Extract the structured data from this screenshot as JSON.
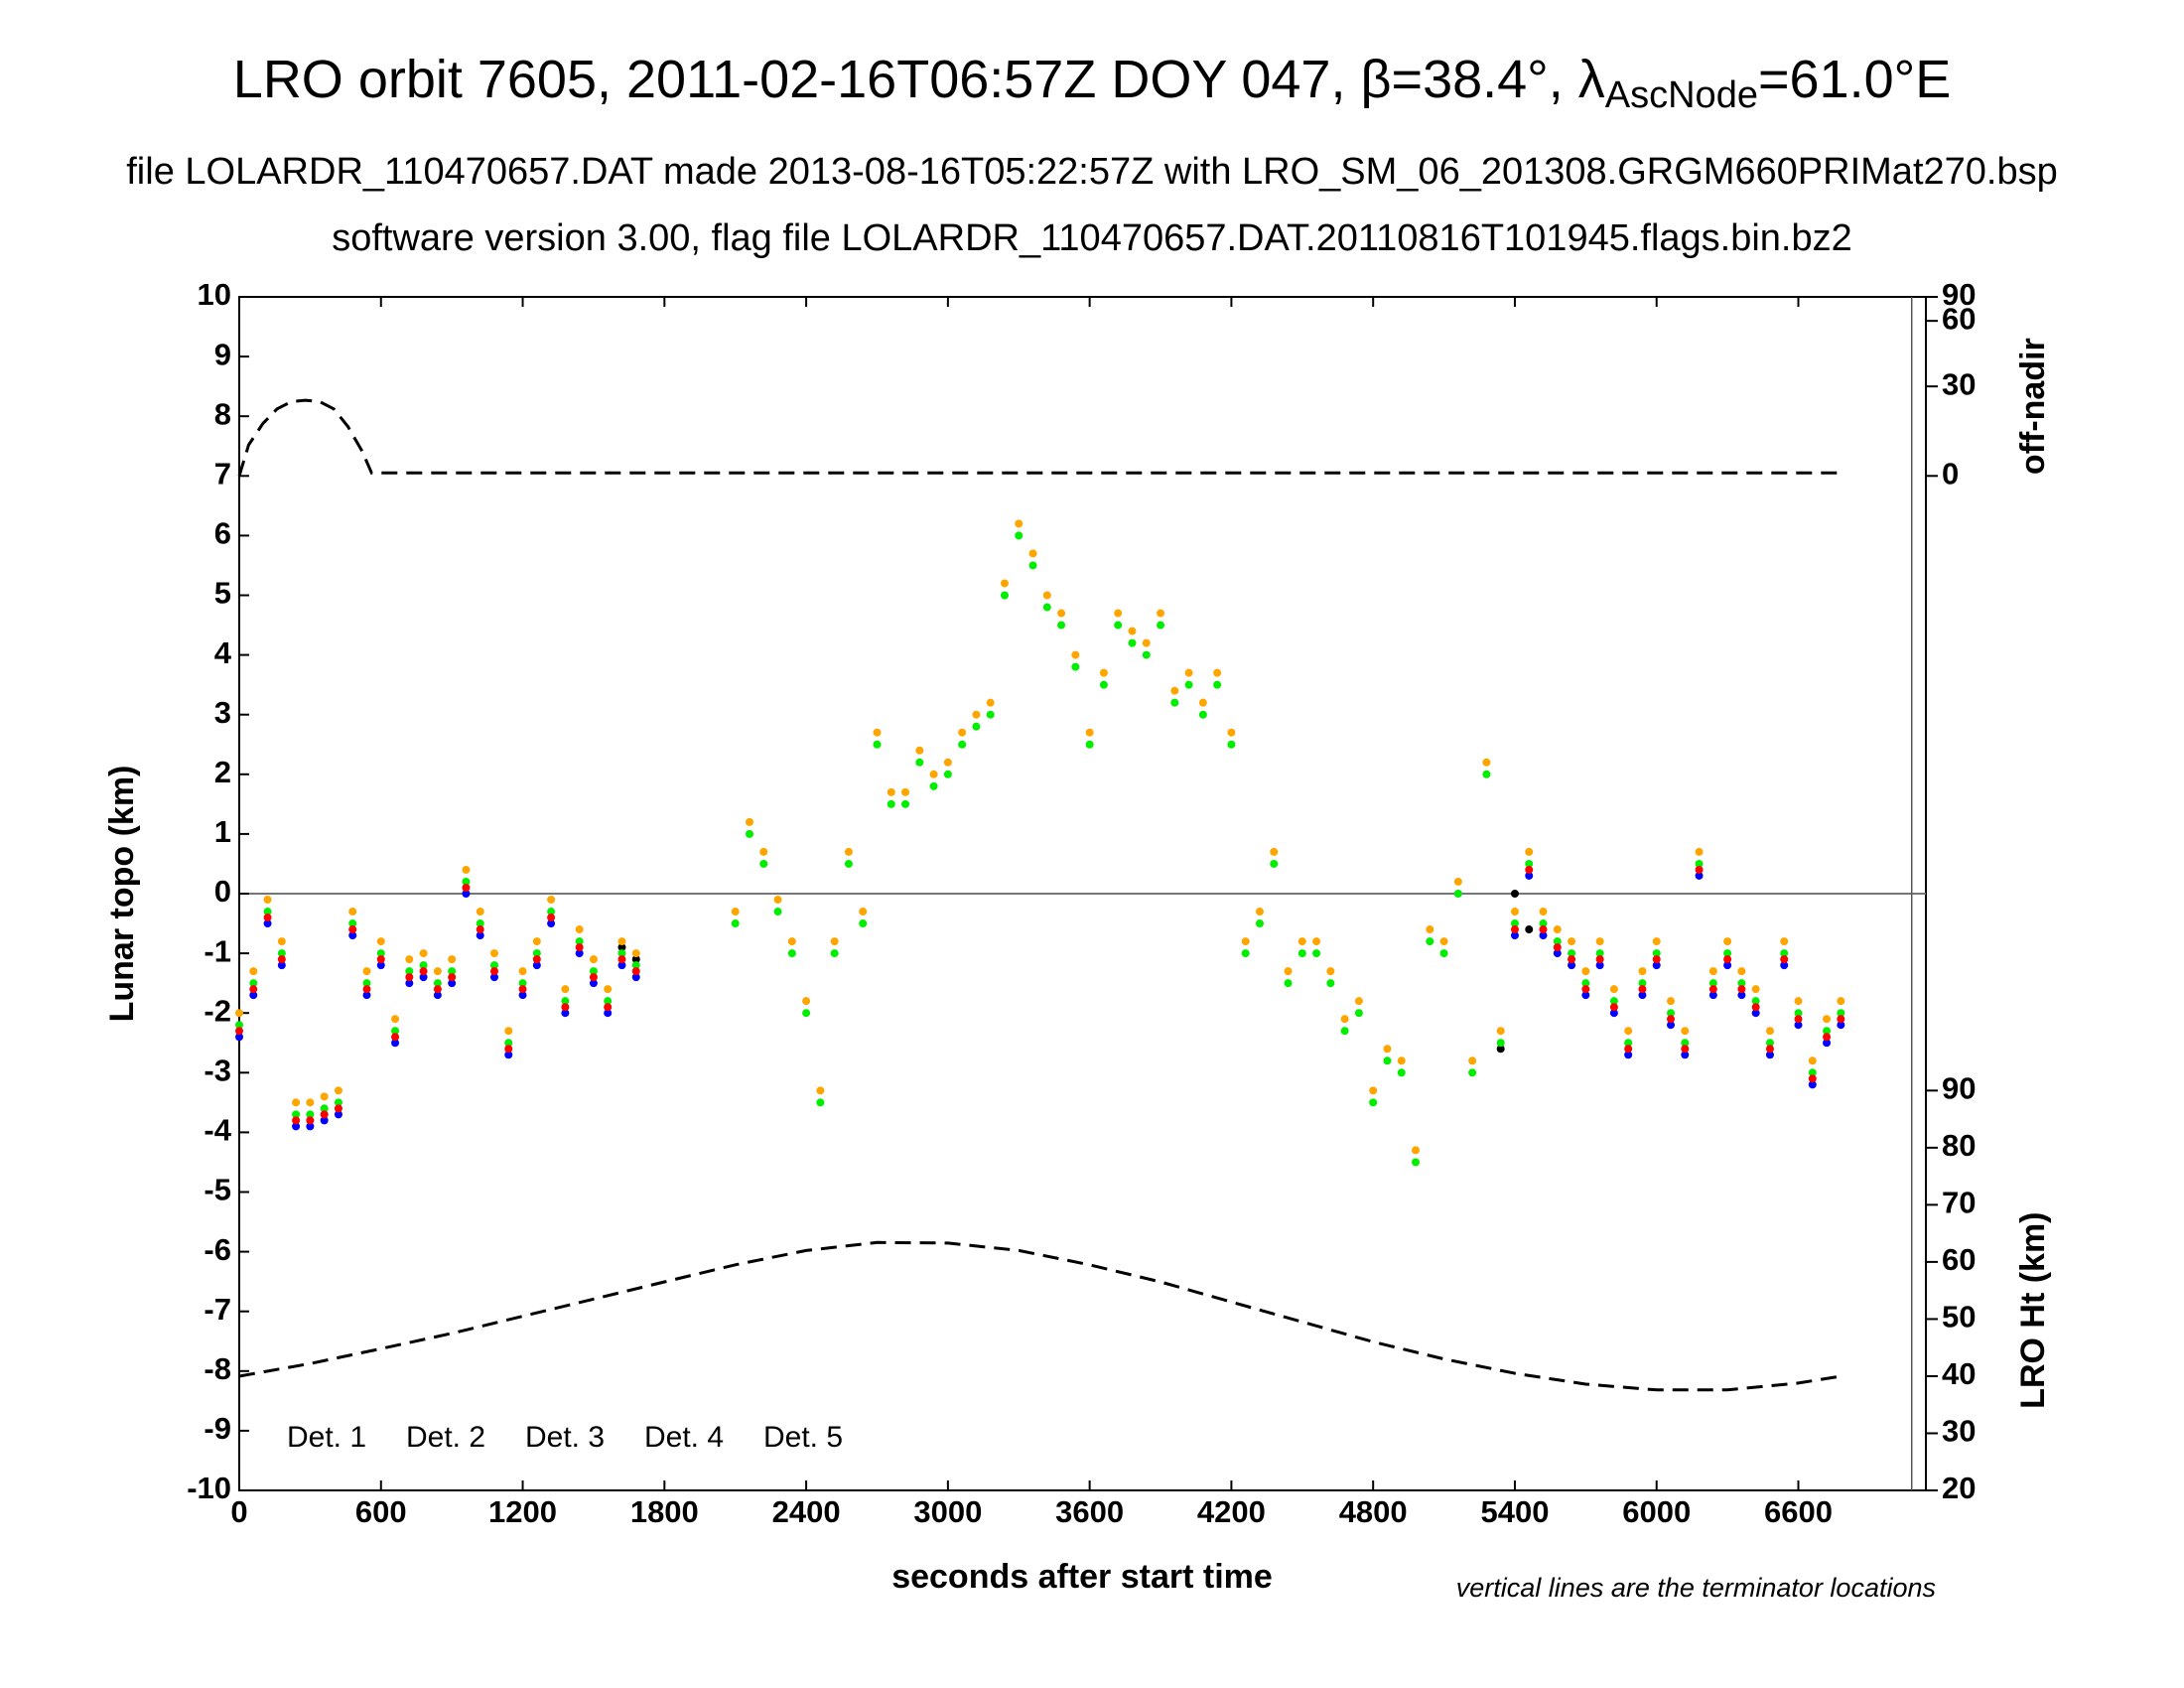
{
  "chart_data": {
    "type": "scatter",
    "title": "LRO orbit 7605, 2011-02-16T06:57Z DOY 047, β=38.4°, λ",
    "title_subscript": "AscNode",
    "title_end": "=61.0°E",
    "subtitle": "file LOLARDR_110470657.DAT made 2013-08-16T05:22:57Z with LRO_SM_06_201308.GRGM660PRIMat270.bsp",
    "subtitle2": "software version 3.00, flag file LOLARDR_110470657.DAT.20110816T101945.flags.bin.bz2",
    "xlabel": "seconds after start time",
    "ylabel": "Lunar topo (km)",
    "note": "vertical lines are the terminator locations",
    "xlim": [
      0,
      7140
    ],
    "xticks": [
      0,
      600,
      1200,
      1800,
      2400,
      3000,
      3600,
      4200,
      4800,
      5400,
      6000,
      6600
    ],
    "ylim": [
      -10,
      10
    ],
    "yticks": [
      -10,
      -9,
      -8,
      -7,
      -6,
      -5,
      -4,
      -3,
      -2,
      -1,
      0,
      1,
      2,
      3,
      4,
      5,
      6,
      7,
      8,
      9,
      10
    ],
    "zero_line": true,
    "terminators": [
      7080
    ],
    "legend": "lower left",
    "series": [
      {
        "name": "Det. 1",
        "color": "#000000",
        "x": [
          1620,
          1680,
          5340,
          5400,
          5460
        ],
        "values": [
          -0.9,
          -1.1,
          -2.6,
          0.0,
          -0.6
        ]
      },
      {
        "name": "Det. 2",
        "color": "#0000ff",
        "x": [
          0,
          60,
          120,
          180,
          240,
          300,
          360,
          420,
          480,
          540,
          600,
          660,
          720,
          780,
          840,
          900,
          960,
          1020,
          1080,
          1140,
          1200,
          1260,
          1320,
          1380,
          1440,
          1500,
          1560,
          1620,
          1680,
          5400,
          5460,
          5520,
          5580,
          5640,
          5700,
          5760,
          5820,
          5880,
          5940,
          6000,
          6060,
          6120,
          6180,
          6240,
          6300,
          6360,
          6420,
          6480,
          6540,
          6600,
          6660,
          6720,
          6780
        ],
        "values": [
          -2.4,
          -1.7,
          -0.5,
          -1.2,
          -3.9,
          -3.9,
          -3.8,
          -3.7,
          -0.7,
          -1.7,
          -1.2,
          -2.5,
          -1.5,
          -1.4,
          -1.7,
          -1.5,
          0.0,
          -0.7,
          -1.4,
          -2.7,
          -1.7,
          -1.2,
          -0.5,
          -2.0,
          -1.0,
          -1.5,
          -2.0,
          -1.2,
          -1.4,
          -0.7,
          0.3,
          -0.7,
          -1.0,
          -1.2,
          -1.7,
          -1.2,
          -2.0,
          -2.7,
          -1.7,
          -1.2,
          -2.2,
          -2.7,
          0.3,
          -1.7,
          -1.2,
          -1.7,
          -2.0,
          -2.7,
          -1.2,
          -2.2,
          -3.2,
          -2.5,
          -2.2
        ]
      },
      {
        "name": "Det. 3",
        "color": "#00ee00",
        "x": [
          0,
          60,
          120,
          180,
          240,
          300,
          360,
          420,
          480,
          540,
          600,
          660,
          720,
          780,
          840,
          900,
          960,
          1020,
          1080,
          1140,
          1200,
          1260,
          1320,
          1380,
          1440,
          1500,
          1560,
          1620,
          1680,
          2100,
          2160,
          2220,
          2280,
          2340,
          2400,
          2460,
          2520,
          2580,
          2640,
          2700,
          2760,
          2820,
          2880,
          2940,
          3000,
          3060,
          3120,
          3180,
          3240,
          3300,
          3360,
          3420,
          3480,
          3540,
          3600,
          3660,
          3720,
          3780,
          3840,
          3900,
          3960,
          4020,
          4080,
          4140,
          4200,
          4260,
          4320,
          4380,
          4440,
          4500,
          4560,
          4620,
          4680,
          4740,
          4800,
          4860,
          4920,
          4980,
          5040,
          5100,
          5160,
          5220,
          5280,
          5340,
          5400,
          5460,
          5520,
          5580,
          5640,
          5700,
          5760,
          5820,
          5880,
          5940,
          6000,
          6060,
          6120,
          6180,
          6240,
          6300,
          6360,
          6420,
          6480,
          6540,
          6600,
          6660,
          6720,
          6780
        ],
        "values": [
          -2.2,
          -1.5,
          -0.3,
          -1.0,
          -3.7,
          -3.7,
          -3.6,
          -3.5,
          -0.5,
          -1.5,
          -1.0,
          -2.3,
          -1.3,
          -1.2,
          -1.5,
          -1.3,
          0.2,
          -0.5,
          -1.2,
          -2.5,
          -1.5,
          -1.0,
          -0.3,
          -1.8,
          -0.8,
          -1.3,
          -1.8,
          -1.0,
          -1.2,
          -0.5,
          1.0,
          0.5,
          -0.3,
          -1.0,
          -2.0,
          -3.5,
          -1.0,
          0.5,
          -0.5,
          2.5,
          1.5,
          1.5,
          2.2,
          1.8,
          2.0,
          2.5,
          2.8,
          3.0,
          5.0,
          6.0,
          5.5,
          4.8,
          4.5,
          3.8,
          2.5,
          3.5,
          4.5,
          4.2,
          4.0,
          4.5,
          3.2,
          3.5,
          3.0,
          3.5,
          2.5,
          -1.0,
          -0.5,
          0.5,
          -1.5,
          -1.0,
          -1.0,
          -1.5,
          -2.3,
          -2.0,
          -3.5,
          -2.8,
          -3.0,
          -4.5,
          -0.8,
          -1.0,
          0.0,
          -3.0,
          2.0,
          -2.5,
          -0.5,
          0.5,
          -0.5,
          -0.8,
          -1.0,
          -1.5,
          -1.0,
          -1.8,
          -2.5,
          -1.5,
          -1.0,
          -2.0,
          -2.5,
          0.5,
          -1.5,
          -1.0,
          -1.5,
          -1.8,
          -2.5,
          -1.0,
          -2.0,
          -3.0,
          -2.3,
          -2.0
        ]
      },
      {
        "name": "Det. 4",
        "color": "#ffa500",
        "x": [
          0,
          60,
          120,
          180,
          240,
          300,
          360,
          420,
          480,
          540,
          600,
          660,
          720,
          780,
          840,
          900,
          960,
          1020,
          1080,
          1140,
          1200,
          1260,
          1320,
          1380,
          1440,
          1500,
          1560,
          1620,
          1680,
          2100,
          2160,
          2220,
          2280,
          2340,
          2400,
          2460,
          2520,
          2580,
          2640,
          2700,
          2760,
          2820,
          2880,
          2940,
          3000,
          3060,
          3120,
          3180,
          3240,
          3300,
          3360,
          3420,
          3480,
          3540,
          3600,
          3660,
          3720,
          3780,
          3840,
          3900,
          3960,
          4020,
          4080,
          4140,
          4200,
          4260,
          4320,
          4380,
          4440,
          4500,
          4560,
          4620,
          4680,
          4740,
          4800,
          4860,
          4920,
          4980,
          5040,
          5100,
          5160,
          5220,
          5280,
          5340,
          5400,
          5460,
          5520,
          5580,
          5640,
          5700,
          5760,
          5820,
          5880,
          5940,
          6000,
          6060,
          6120,
          6180,
          6240,
          6300,
          6360,
          6420,
          6480,
          6540,
          6600,
          6660,
          6720,
          6780
        ],
        "values": [
          -2.0,
          -1.3,
          -0.1,
          -0.8,
          -3.5,
          -3.5,
          -3.4,
          -3.3,
          -0.3,
          -1.3,
          -0.8,
          -2.1,
          -1.1,
          -1.0,
          -1.3,
          -1.1,
          0.4,
          -0.3,
          -1.0,
          -2.3,
          -1.3,
          -0.8,
          -0.1,
          -1.6,
          -0.6,
          -1.1,
          -1.6,
          -0.8,
          -1.0,
          -0.3,
          1.2,
          0.7,
          -0.1,
          -0.8,
          -1.8,
          -3.3,
          -0.8,
          0.7,
          -0.3,
          2.7,
          1.7,
          1.7,
          2.4,
          2.0,
          2.2,
          2.7,
          3.0,
          3.2,
          5.2,
          6.2,
          5.7,
          5.0,
          4.7,
          4.0,
          2.7,
          3.7,
          4.7,
          4.4,
          4.2,
          4.7,
          3.4,
          3.7,
          3.2,
          3.7,
          2.7,
          -0.8,
          -0.3,
          0.7,
          -1.3,
          -0.8,
          -0.8,
          -1.3,
          -2.1,
          -1.8,
          -3.3,
          -2.6,
          -2.8,
          -4.3,
          -0.6,
          -0.8,
          0.2,
          -2.8,
          2.2,
          -2.3,
          -0.3,
          0.7,
          -0.3,
          -0.6,
          -0.8,
          -1.3,
          -0.8,
          -1.6,
          -2.3,
          -1.3,
          -0.8,
          -1.8,
          -2.3,
          0.7,
          -1.3,
          -0.8,
          -1.3,
          -1.6,
          -2.3,
          -0.8,
          -1.8,
          -2.8,
          -2.1,
          -1.8
        ]
      },
      {
        "name": "Det. 5",
        "color": "#ff0000",
        "x": [
          0,
          60,
          120,
          180,
          240,
          300,
          360,
          420,
          480,
          540,
          600,
          660,
          720,
          780,
          840,
          900,
          960,
          1020,
          1080,
          1140,
          1200,
          1260,
          1320,
          1380,
          1440,
          1500,
          1560,
          1620,
          1680,
          5400,
          5460,
          5520,
          5580,
          5640,
          5700,
          5760,
          5820,
          5880,
          5940,
          6000,
          6060,
          6120,
          6180,
          6240,
          6300,
          6360,
          6420,
          6480,
          6540,
          6600,
          6660,
          6720,
          6780
        ],
        "values": [
          -2.3,
          -1.6,
          -0.4,
          -1.1,
          -3.8,
          -3.8,
          -3.7,
          -3.6,
          -0.6,
          -1.6,
          -1.1,
          -2.4,
          -1.4,
          -1.3,
          -1.6,
          -1.4,
          0.1,
          -0.6,
          -1.3,
          -2.6,
          -1.6,
          -1.1,
          -0.4,
          -1.9,
          -0.9,
          -1.4,
          -1.9,
          -1.1,
          -1.3,
          -0.6,
          0.4,
          -0.6,
          -0.9,
          -1.1,
          -1.6,
          -1.1,
          -1.9,
          -2.6,
          -1.6,
          -1.1,
          -2.1,
          -2.6,
          0.4,
          -1.6,
          -1.1,
          -1.6,
          -1.9,
          -2.6,
          -1.1,
          -2.1,
          -3.1,
          -2.4,
          -2.1
        ]
      }
    ],
    "off_nadir": {
      "label": "off-nadir",
      "scale": "sine",
      "color": "#000000",
      "ylim": [
        0,
        90
      ],
      "yticks": [
        0,
        30,
        60,
        90
      ],
      "x": [
        0,
        40,
        100,
        160,
        220,
        280,
        340,
        400,
        460,
        520,
        560,
        580,
        6780
      ],
      "values": [
        0,
        10,
        17,
        22,
        24.5,
        25,
        24.5,
        22,
        16,
        8,
        1,
        1,
        1
      ]
    },
    "altitude": {
      "label": "LRO Ht (km)",
      "color": "#000000",
      "ylim": [
        20,
        90
      ],
      "yticks": [
        20,
        30,
        40,
        50,
        60,
        70,
        80,
        90
      ],
      "x": [
        0,
        300,
        600,
        900,
        1200,
        1500,
        1800,
        2100,
        2400,
        2700,
        3000,
        3300,
        3600,
        3900,
        4200,
        4500,
        4800,
        5100,
        5400,
        5700,
        6000,
        6300,
        6600,
        6780
      ],
      "values": [
        40.0,
        42.2,
        44.8,
        47.5,
        50.5,
        53.5,
        56.5,
        59.5,
        62.0,
        63.4,
        63.3,
        62.0,
        59.5,
        56.5,
        53.0,
        49.5,
        46.0,
        43.0,
        40.5,
        38.6,
        37.6,
        37.6,
        38.8,
        40.0
      ]
    }
  }
}
